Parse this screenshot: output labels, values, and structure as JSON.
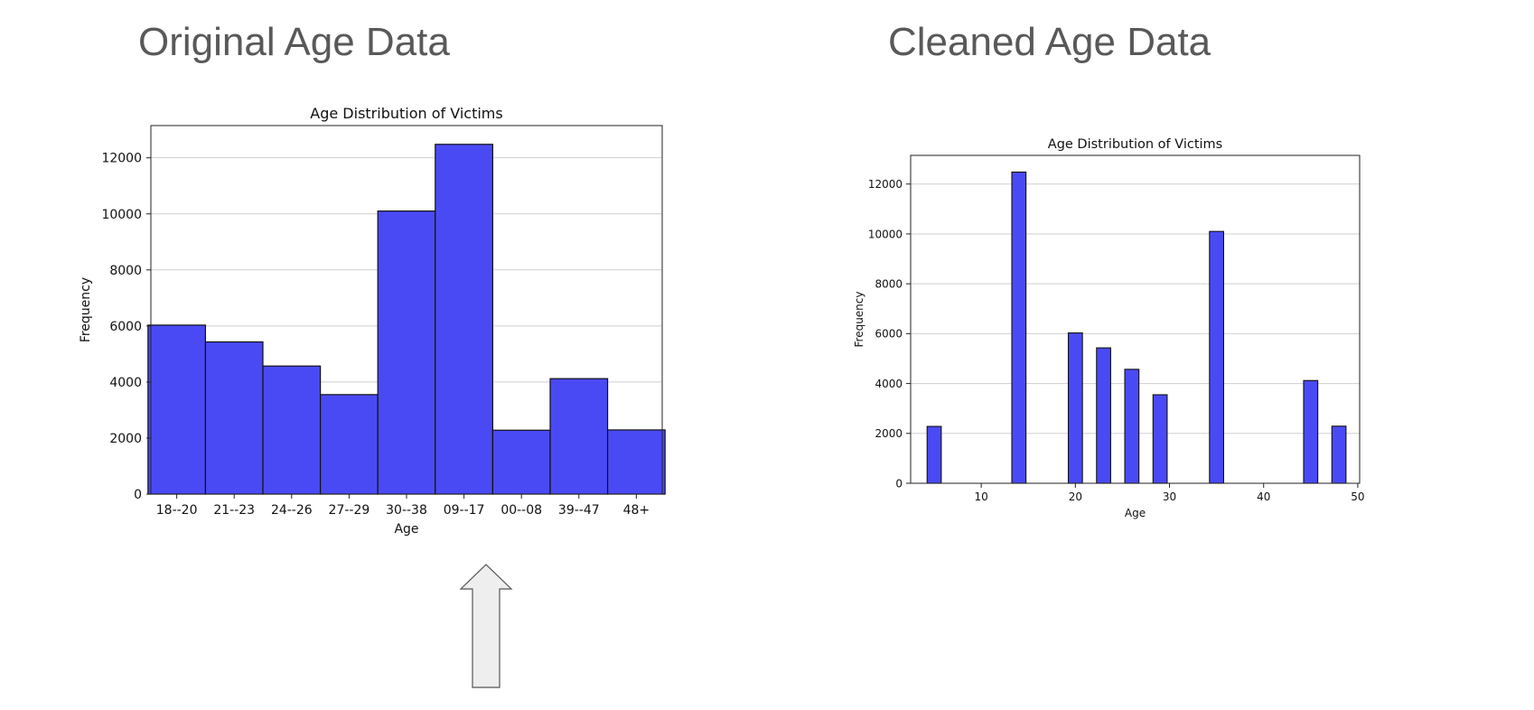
{
  "slide": {
    "left_title": "Original Age Data",
    "right_title": "Cleaned Age Data"
  },
  "colors": {
    "bar_fill": "#4a4af4",
    "bar_edge": "#111111",
    "grid": "#cfcfcf",
    "arrow_fill": "#eeeeee",
    "arrow_edge": "#555555",
    "title_text": "#595959"
  },
  "chart_data": [
    {
      "type": "bar",
      "title": "Age Distribution of Victims",
      "xlabel": "Age",
      "ylabel": "Frequency",
      "categories": [
        "18--20",
        "21--23",
        "24--26",
        "27--29",
        "30--38",
        "09--17",
        "00--08",
        "39--47",
        "48+"
      ],
      "values": [
        6030,
        5430,
        4570,
        3550,
        10100,
        12480,
        2280,
        4120,
        2290
      ],
      "ylim": [
        0,
        13150
      ],
      "yticks": [
        0,
        2000,
        4000,
        6000,
        8000,
        10000,
        12000
      ],
      "grid": "horizontal",
      "legend": "none"
    },
    {
      "type": "bar",
      "title": "Age Distribution of Victims",
      "xlabel": "Age",
      "ylabel": "Frequency",
      "x": [
        5,
        14,
        20,
        23,
        26,
        29,
        35,
        45,
        48
      ],
      "values": [
        2280,
        12480,
        6030,
        5430,
        4570,
        3550,
        10100,
        4120,
        2290
      ],
      "bin_width": 1.5,
      "xlim": [
        2.5,
        50.2
      ],
      "ylim": [
        0,
        13150
      ],
      "xticks": [
        10,
        20,
        30,
        40,
        50
      ],
      "yticks": [
        0,
        2000,
        4000,
        6000,
        8000,
        10000,
        12000
      ],
      "grid": "horizontal",
      "legend": "none"
    }
  ]
}
